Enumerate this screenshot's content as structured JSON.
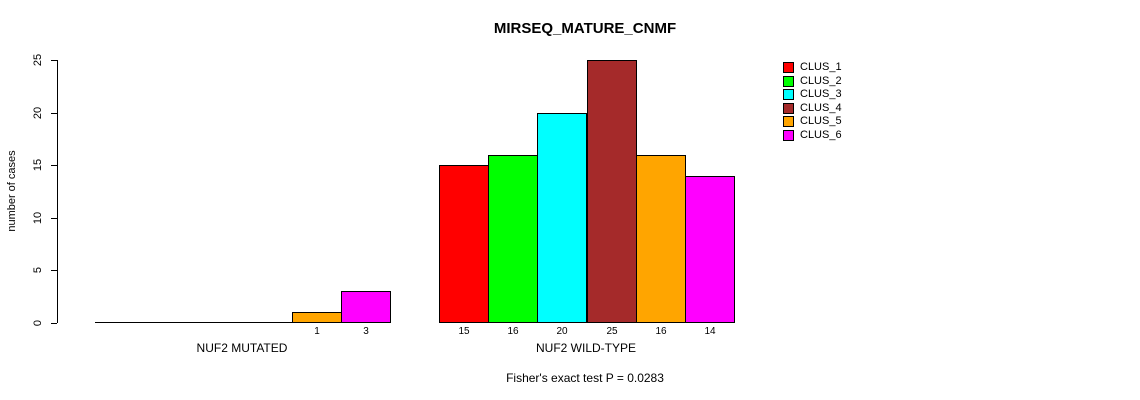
{
  "title": "MIRSEQ_MATURE_CNMF",
  "footer": "Fisher's exact test P = 0.0283",
  "chart_data": {
    "type": "bar",
    "title": "MIRSEQ_MATURE_CNMF",
    "ylabel": "number of cases",
    "xlabel": "",
    "ylim": [
      0,
      25
    ],
    "yticks": [
      0,
      5,
      10,
      15,
      20,
      25
    ],
    "grid": false,
    "legend_position": "right",
    "clusters": [
      {
        "name": "CLUS_1",
        "color": "#ff0000"
      },
      {
        "name": "CLUS_2",
        "color": "#00ff00"
      },
      {
        "name": "CLUS_3",
        "color": "#00ffff"
      },
      {
        "name": "CLUS_4",
        "color": "#a52a2a"
      },
      {
        "name": "CLUS_5",
        "color": "#ffa500"
      },
      {
        "name": "CLUS_6",
        "color": "#ff00ff"
      }
    ],
    "groups": [
      {
        "label": "NUF2 MUTATED",
        "values": [
          0,
          0,
          0,
          0,
          1,
          3
        ],
        "bar_labels": [
          "",
          "",
          "",
          "",
          "1",
          "3"
        ]
      },
      {
        "label": "NUF2 WILD-TYPE",
        "values": [
          15,
          16,
          20,
          25,
          16,
          14
        ],
        "bar_labels": [
          "15",
          "16",
          "20",
          "25",
          "16",
          "14"
        ]
      }
    ],
    "annotation": "Fisher's exact test P = 0.0283"
  }
}
